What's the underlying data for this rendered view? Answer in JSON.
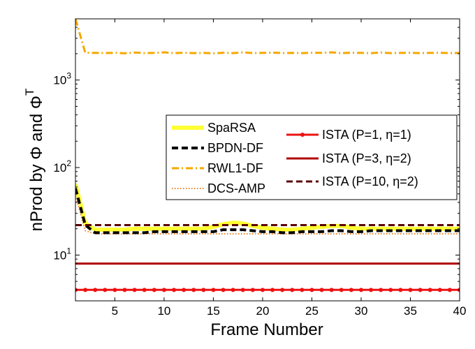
{
  "chart_data": {
    "type": "line",
    "xlabel": "Frame Number",
    "ylabel_parts": [
      "nProd by ",
      "Φ",
      " and ",
      "Φ",
      "T"
    ],
    "xlim": [
      1,
      40
    ],
    "ylim": [
      3,
      5000
    ],
    "yscale": "log",
    "xticks": [
      5,
      10,
      15,
      20,
      25,
      30,
      35,
      40
    ],
    "yticks": [
      {
        "value": 10,
        "base": "10",
        "exp": "1"
      },
      {
        "value": 100,
        "base": "10",
        "exp": "2"
      },
      {
        "value": 1000,
        "base": "10",
        "exp": "3"
      }
    ],
    "legend_left": [
      "SpaRSA",
      "BPDN-DF",
      "RWL1-DF",
      "DCS-AMP"
    ],
    "legend_right": [
      "ISTA (P=1, η=1)",
      "ISTA (P=3, η=2)",
      "ISTA (P=10, η=2)"
    ],
    "series": [
      {
        "name": "RWL1-DF",
        "color": "#f5a800",
        "style": "dashdot",
        "x": [
          1,
          2,
          3,
          4,
          5,
          6,
          7,
          8,
          9,
          10,
          11,
          12,
          13,
          14,
          15,
          16,
          17,
          18,
          19,
          20,
          21,
          22,
          23,
          24,
          25,
          26,
          27,
          28,
          29,
          30,
          31,
          32,
          33,
          34,
          35,
          36,
          37,
          38,
          39,
          40
        ],
        "values": [
          5000,
          2050,
          2040,
          2030,
          2050,
          2020,
          2060,
          2030,
          2040,
          2070,
          2030,
          2050,
          2030,
          2040,
          2020,
          2050,
          2030,
          2070,
          2030,
          2040,
          2060,
          2030,
          2040,
          2030,
          2050,
          2040,
          2070,
          2030,
          2050,
          2040,
          2030,
          2060,
          2030,
          2040,
          2050,
          2030,
          2040,
          2050,
          2030,
          2040
        ]
      },
      {
        "name": "SpaRSA",
        "color": "#ffff33",
        "style": "solid-thick",
        "x": [
          1,
          2,
          3,
          4,
          5,
          6,
          7,
          8,
          9,
          10,
          11,
          12,
          13,
          14,
          15,
          16,
          17,
          18,
          19,
          20,
          21,
          22,
          23,
          24,
          25,
          26,
          27,
          28,
          29,
          30,
          31,
          32,
          33,
          34,
          35,
          36,
          37,
          38,
          39,
          40
        ],
        "values": [
          65,
          23,
          19.5,
          19.5,
          19.5,
          19.5,
          20,
          20,
          20,
          20,
          20,
          20,
          20,
          20,
          21,
          22.5,
          23.5,
          23,
          21.5,
          20.5,
          20,
          19.5,
          19.5,
          20,
          20.5,
          21,
          21.5,
          21.5,
          20.5,
          20,
          20,
          20,
          20,
          20,
          20,
          20,
          20,
          20,
          20,
          20
        ]
      },
      {
        "name": "DCS-AMP",
        "color": "#f08020",
        "style": "dotted",
        "x": [
          1,
          2,
          3,
          4,
          5,
          6,
          7,
          8,
          9,
          10,
          11,
          12,
          13,
          14,
          15,
          16,
          17,
          18,
          19,
          20,
          21,
          22,
          23,
          24,
          25,
          26,
          27,
          28,
          29,
          30,
          31,
          32,
          33,
          34,
          35,
          36,
          37,
          38,
          39,
          40
        ],
        "values": [
          48,
          19,
          17.5,
          17.5,
          17.5,
          17.5,
          17.5,
          17.5,
          17.5,
          17.5,
          17.5,
          17.5,
          17.5,
          17.5,
          17.5,
          17.5,
          17.5,
          17.5,
          17.5,
          17.5,
          17.5,
          17.5,
          17.5,
          17.5,
          17.5,
          17.5,
          17.5,
          17.5,
          17.5,
          17.5,
          17.5,
          17.5,
          17.5,
          17.5,
          17.5,
          17.5,
          17.5,
          17.5,
          17.5,
          17.5
        ]
      },
      {
        "name": "BPDN-DF",
        "color": "#000000",
        "style": "dashed-thick",
        "x": [
          1,
          2,
          3,
          4,
          5,
          6,
          7,
          8,
          9,
          10,
          11,
          12,
          13,
          14,
          15,
          16,
          17,
          18,
          19,
          20,
          21,
          22,
          23,
          24,
          25,
          26,
          27,
          28,
          29,
          30,
          31,
          32,
          33,
          34,
          35,
          36,
          37,
          38,
          39,
          40
        ],
        "values": [
          58,
          22,
          18,
          18,
          18,
          18,
          18,
          18,
          18.5,
          18.5,
          18.5,
          18.5,
          18.5,
          18.5,
          18.5,
          19.5,
          19.5,
          19.5,
          19,
          18.5,
          18.5,
          18,
          18,
          18.5,
          18.5,
          18.5,
          19,
          19,
          18.5,
          18.5,
          19,
          19,
          19,
          19,
          19,
          19,
          19,
          19,
          19,
          19
        ]
      },
      {
        "name": "ISTA (P=10, η=2)",
        "color": "#5a0000",
        "style": "dashed",
        "x": [
          1,
          40
        ],
        "values": [
          22,
          22
        ]
      },
      {
        "name": "ISTA (P=3, η=2)",
        "color": "#b00000",
        "style": "solid",
        "x": [
          1,
          40
        ],
        "values": [
          8,
          8
        ]
      },
      {
        "name": "ISTA (P=1, η=1)",
        "color": "#ee1111",
        "style": "solid-marker",
        "x": [
          1,
          2,
          3,
          4,
          5,
          6,
          7,
          8,
          9,
          10,
          11,
          12,
          13,
          14,
          15,
          16,
          17,
          18,
          19,
          20,
          21,
          22,
          23,
          24,
          25,
          26,
          27,
          28,
          29,
          30,
          31,
          32,
          33,
          34,
          35,
          36,
          37,
          38,
          39,
          40
        ],
        "values": [
          4,
          4,
          4,
          4,
          4,
          4,
          4,
          4,
          4,
          4,
          4,
          4,
          4,
          4,
          4,
          4,
          4,
          4,
          4,
          4,
          4,
          4,
          4,
          4,
          4,
          4,
          4,
          4,
          4,
          4,
          4,
          4,
          4,
          4,
          4,
          4,
          4,
          4,
          4,
          4
        ]
      }
    ]
  }
}
